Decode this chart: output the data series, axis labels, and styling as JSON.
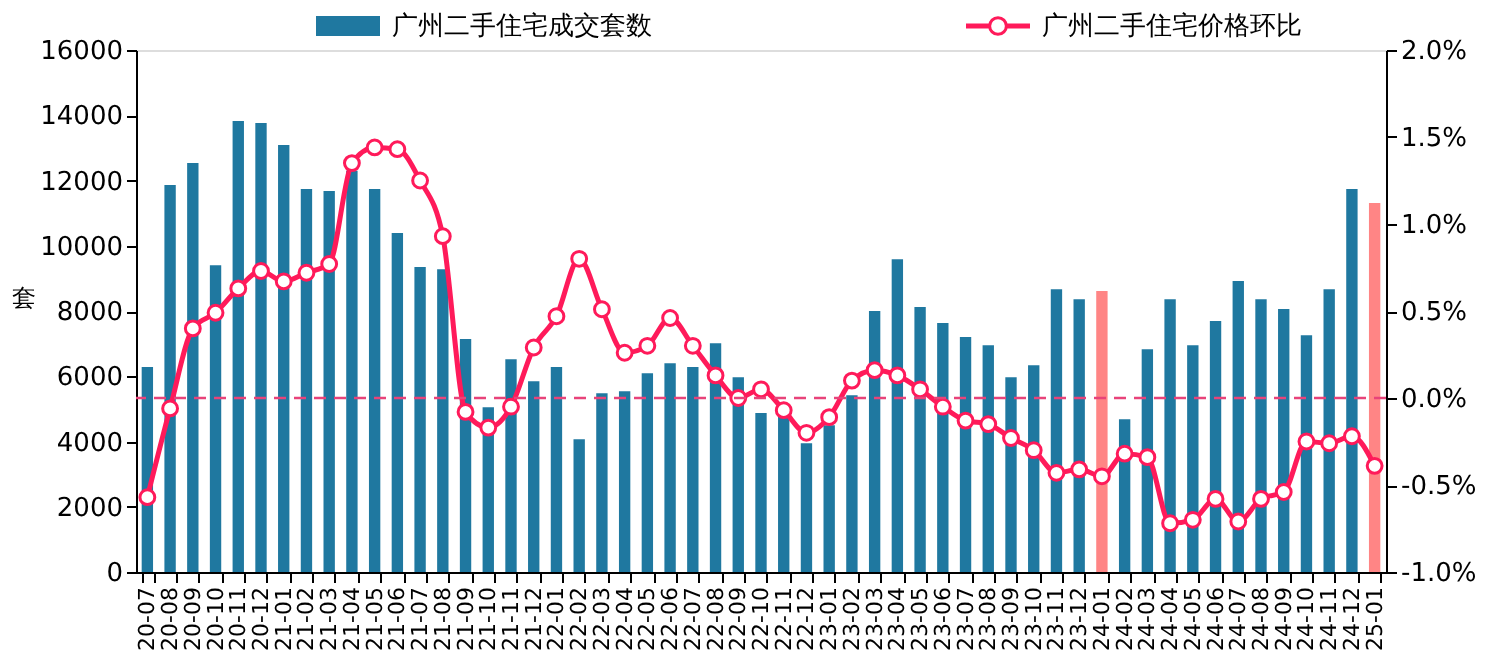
{
  "chart_data": {
    "type": "bar",
    "ylabel": "套",
    "legend": "top",
    "grid": false,
    "categories": [
      "20-07",
      "20-08",
      "20-09",
      "20-10",
      "20-11",
      "20-12",
      "21-01",
      "21-02",
      "21-03",
      "21-04",
      "21-05",
      "21-06",
      "21-07",
      "21-08",
      "21-09",
      "21-10",
      "21-11",
      "21-12",
      "22-01",
      "22-02",
      "22-03",
      "22-04",
      "22-05",
      "22-06",
      "22-07",
      "22-08",
      "22-09",
      "22-10",
      "22-11",
      "22-12",
      "23-01",
      "23-02",
      "23-03",
      "23-04",
      "23-05",
      "23-06",
      "23-07",
      "23-08",
      "23-09",
      "23-10",
      "23-11",
      "23-12",
      "24-01",
      "24-02",
      "24-03",
      "24-04",
      "24-05",
      "24-06",
      "24-07",
      "24-08",
      "24-09",
      "24-10",
      "24-11",
      "24-12",
      "25-01"
    ],
    "ylim": [
      0,
      16000
    ],
    "yticks": [
      0,
      2000,
      4000,
      6000,
      8000,
      10000,
      12000,
      14000,
      16000
    ],
    "y2lim": [
      -1,
      2
    ],
    "y2ticks": [
      {
        "value": -1,
        "label": "-1.0%"
      },
      {
        "value": -0.5,
        "label": "-0.5%"
      },
      {
        "value": 0,
        "label": "0.0%"
      },
      {
        "value": 0.5,
        "label": "0.5%"
      },
      {
        "value": 1,
        "label": "1.0%"
      },
      {
        "value": 1.5,
        "label": "1.5%"
      },
      {
        "value": 2,
        "label": "2.0%"
      }
    ],
    "ref_lines": [
      {
        "axis": "y2",
        "value": 0,
        "color": "#e8437a",
        "line_style": "dashed"
      }
    ],
    "series": [
      {
        "name": "广州二手住宅成交套数",
        "color": "#1f78a0",
        "colors": [
          "#1f78a0",
          "#1f78a0",
          "#1f78a0",
          "#1f78a0",
          "#1f78a0",
          "#1f78a0",
          "#1f78a0",
          "#1f78a0",
          "#1f78a0",
          "#1f78a0",
          "#1f78a0",
          "#1f78a0",
          "#1f78a0",
          "#1f78a0",
          "#1f78a0",
          "#1f78a0",
          "#1f78a0",
          "#1f78a0",
          "#1f78a0",
          "#1f78a0",
          "#1f78a0",
          "#1f78a0",
          "#1f78a0",
          "#1f78a0",
          "#1f78a0",
          "#1f78a0",
          "#1f78a0",
          "#1f78a0",
          "#1f78a0",
          "#1f78a0",
          "#1f78a0",
          "#1f78a0",
          "#1f78a0",
          "#1f78a0",
          "#1f78a0",
          "#1f78a0",
          "#1f78a0",
          "#1f78a0",
          "#1f78a0",
          "#1f78a0",
          "#1f78a0",
          "#1f78a0",
          "#ff8585",
          "#1f78a0",
          "#1f78a0",
          "#1f78a0",
          "#1f78a0",
          "#1f78a0",
          "#1f78a0",
          "#1f78a0",
          "#1f78a0",
          "#1f78a0",
          "#1f78a0",
          "#1f78a0",
          "#ff8585"
        ],
        "values": [
          6280,
          11860,
          12540,
          9400,
          13820,
          13760,
          13090,
          11740,
          11680,
          12300,
          11740,
          10390,
          9350,
          9280,
          7140,
          5050,
          6520,
          5850,
          6280,
          4070,
          5480,
          5540,
          6090,
          6400,
          6280,
          7010,
          5970,
          4870,
          4800,
          3950,
          4500,
          5420,
          8000,
          9590,
          8120,
          7630,
          7200,
          6950,
          5970,
          6340,
          8670,
          8360,
          8610,
          4680,
          6830,
          8360,
          6950,
          7690,
          8920,
          8360,
          8060,
          7260,
          8670,
          11740,
          11310
        ]
      },
      {
        "name": "广州二手住宅价格环比",
        "type": "line",
        "axis": "y2",
        "color": "#ff1a5a",
        "marker": "circle",
        "line_style": "solid",
        "values": [
          -0.57,
          -0.06,
          0.4,
          0.49,
          0.63,
          0.73,
          0.67,
          0.72,
          0.77,
          1.35,
          1.44,
          1.43,
          1.25,
          0.93,
          -0.08,
          -0.17,
          -0.05,
          0.29,
          0.47,
          0.8,
          0.51,
          0.26,
          0.3,
          0.46,
          0.3,
          0.13,
          0.0,
          0.05,
          -0.07,
          -0.2,
          -0.11,
          0.1,
          0.16,
          0.13,
          0.05,
          -0.05,
          -0.13,
          -0.15,
          -0.23,
          -0.3,
          -0.43,
          -0.41,
          -0.45,
          -0.32,
          -0.34,
          -0.72,
          -0.7,
          -0.58,
          -0.71,
          -0.58,
          -0.54,
          -0.25,
          -0.26,
          -0.22,
          -0.39
        ]
      }
    ]
  }
}
